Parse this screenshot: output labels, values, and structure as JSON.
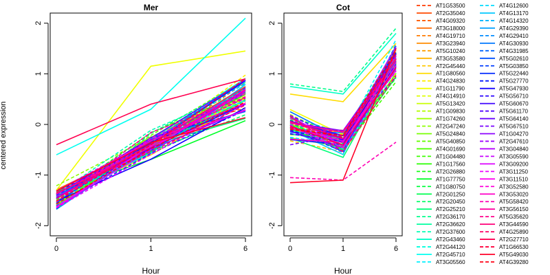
{
  "chart_data": {
    "type": "line",
    "ylabel": "centered expression",
    "panels": [
      {
        "title": "Mer",
        "xlabel": "Hour",
        "x": [
          "0",
          "1",
          "6"
        ],
        "ylim": [
          -2.2,
          2.2
        ],
        "yticks": [
          -2,
          -1,
          0,
          1,
          2
        ]
      },
      {
        "title": "Cot",
        "xlabel": "Hour",
        "x": [
          "0",
          "1",
          "6"
        ],
        "ylim": [
          -2.2,
          2.2
        ],
        "yticks": [
          -2,
          -1,
          0,
          1,
          2
        ]
      }
    ],
    "legend_columns": [
      [
        {
          "name": "AT1G53500",
          "color": "#ff3a00",
          "dash": true
        },
        {
          "name": "AT2G35040",
          "color": "#ff4a00",
          "dash": false
        },
        {
          "name": "AT4G09320",
          "color": "#ff5a00",
          "dash": true
        },
        {
          "name": "AT3G18000",
          "color": "#ff6a00",
          "dash": false
        },
        {
          "name": "AT4G19710",
          "color": "#ff7a00",
          "dash": true
        },
        {
          "name": "AT3G23940",
          "color": "#ff8c00",
          "dash": false
        },
        {
          "name": "AT5G10240",
          "color": "#ffa000",
          "dash": true
        },
        {
          "name": "AT3G53580",
          "color": "#ffb400",
          "dash": false
        },
        {
          "name": "AT2G45440",
          "color": "#ffc800",
          "dash": true
        },
        {
          "name": "AT1G80560",
          "color": "#ffdc00",
          "dash": false
        },
        {
          "name": "AT4G24830",
          "color": "#fff000",
          "dash": true
        },
        {
          "name": "AT1G11790",
          "color": "#f0ff00",
          "dash": false
        },
        {
          "name": "AT4G14910",
          "color": "#dcff00",
          "dash": true
        },
        {
          "name": "AT5G13420",
          "color": "#c8ff00",
          "dash": false
        },
        {
          "name": "AT1G09830",
          "color": "#b4ff00",
          "dash": true
        },
        {
          "name": "AT1G74260",
          "color": "#a0ff00",
          "dash": false
        },
        {
          "name": "AT2G47240",
          "color": "#8cff00",
          "dash": true
        },
        {
          "name": "AT5G24840",
          "color": "#78ff00",
          "dash": false
        },
        {
          "name": "AT5G40850",
          "color": "#64ff00",
          "dash": true
        },
        {
          "name": "AT4G01690",
          "color": "#50ff00",
          "dash": false
        },
        {
          "name": "AT1G04480",
          "color": "#3cff00",
          "dash": true
        },
        {
          "name": "AT1G17560",
          "color": "#28ff00",
          "dash": false
        },
        {
          "name": "AT2G26880",
          "color": "#14ff14",
          "dash": true
        },
        {
          "name": "AT1G77750",
          "color": "#00ff28",
          "dash": false
        },
        {
          "name": "AT1G80750",
          "color": "#00ff3c",
          "dash": true
        },
        {
          "name": "AT2G01250",
          "color": "#00ff50",
          "dash": false
        },
        {
          "name": "AT2G20450",
          "color": "#00ff64",
          "dash": true
        },
        {
          "name": "AT2G25210",
          "color": "#00ff78",
          "dash": false
        },
        {
          "name": "AT2G36170",
          "color": "#00ff8c",
          "dash": true
        },
        {
          "name": "AT2G36620",
          "color": "#00ffa0",
          "dash": false
        },
        {
          "name": "AT2G37600",
          "color": "#00ffb4",
          "dash": true
        },
        {
          "name": "AT2G43460",
          "color": "#00ffc8",
          "dash": false
        },
        {
          "name": "AT2G44120",
          "color": "#00ffdc",
          "dash": true
        },
        {
          "name": "AT2G45710",
          "color": "#00fff0",
          "dash": false
        },
        {
          "name": "AT3G05560",
          "color": "#00f0ff",
          "dash": true
        }
      ],
      [
        {
          "name": "AT4G12600",
          "color": "#00dcff",
          "dash": true
        },
        {
          "name": "AT4G13170",
          "color": "#00c8ff",
          "dash": false
        },
        {
          "name": "AT4G14320",
          "color": "#00b4ff",
          "dash": true
        },
        {
          "name": "AT4G29390",
          "color": "#00a0ff",
          "dash": false
        },
        {
          "name": "AT4G29410",
          "color": "#008cff",
          "dash": true
        },
        {
          "name": "AT4G30930",
          "color": "#0078ff",
          "dash": false
        },
        {
          "name": "AT4G31985",
          "color": "#0064ff",
          "dash": true
        },
        {
          "name": "AT5G02610",
          "color": "#0050ff",
          "dash": false
        },
        {
          "name": "AT5G03850",
          "color": "#003cff",
          "dash": true
        },
        {
          "name": "AT5G22440",
          "color": "#0028ff",
          "dash": false
        },
        {
          "name": "AT5G27770",
          "color": "#0014ff",
          "dash": true
        },
        {
          "name": "AT5G47930",
          "color": "#1400ff",
          "dash": false
        },
        {
          "name": "AT5G56710",
          "color": "#2800ff",
          "dash": true
        },
        {
          "name": "AT5G60670",
          "color": "#3c00ff",
          "dash": false
        },
        {
          "name": "AT5G61170",
          "color": "#5000ff",
          "dash": true
        },
        {
          "name": "AT5G64140",
          "color": "#6400ff",
          "dash": false
        },
        {
          "name": "AT5G67510",
          "color": "#7800ff",
          "dash": true
        },
        {
          "name": "AT1G04270",
          "color": "#8c00ff",
          "dash": false
        },
        {
          "name": "AT2G47610",
          "color": "#a000ff",
          "dash": true
        },
        {
          "name": "AT3G04840",
          "color": "#b400ff",
          "dash": false
        },
        {
          "name": "AT3G05590",
          "color": "#c800ff",
          "dash": true
        },
        {
          "name": "AT3G09200",
          "color": "#dc00ff",
          "dash": false
        },
        {
          "name": "AT3G11250",
          "color": "#f000ff",
          "dash": true
        },
        {
          "name": "AT3G11510",
          "color": "#ff00f0",
          "dash": false
        },
        {
          "name": "AT3G52580",
          "color": "#ff00dc",
          "dash": true
        },
        {
          "name": "AT3G53020",
          "color": "#ff00c8",
          "dash": false
        },
        {
          "name": "AT5G58420",
          "color": "#ff00b4",
          "dash": true
        },
        {
          "name": "AT3G56150",
          "color": "#ff00a0",
          "dash": false
        },
        {
          "name": "AT5G35620",
          "color": "#ff008c",
          "dash": true
        },
        {
          "name": "AT3G44590",
          "color": "#ff0078",
          "dash": false
        },
        {
          "name": "AT4G25890",
          "color": "#ff0064",
          "dash": true
        },
        {
          "name": "AT2G27710",
          "color": "#ff0050",
          "dash": false
        },
        {
          "name": "AT1G66530",
          "color": "#ff003c",
          "dash": true
        },
        {
          "name": "AT5G49030",
          "color": "#ff0028",
          "dash": false
        },
        {
          "name": "AT4G39280",
          "color": "#ff0014",
          "dash": true
        }
      ]
    ]
  }
}
